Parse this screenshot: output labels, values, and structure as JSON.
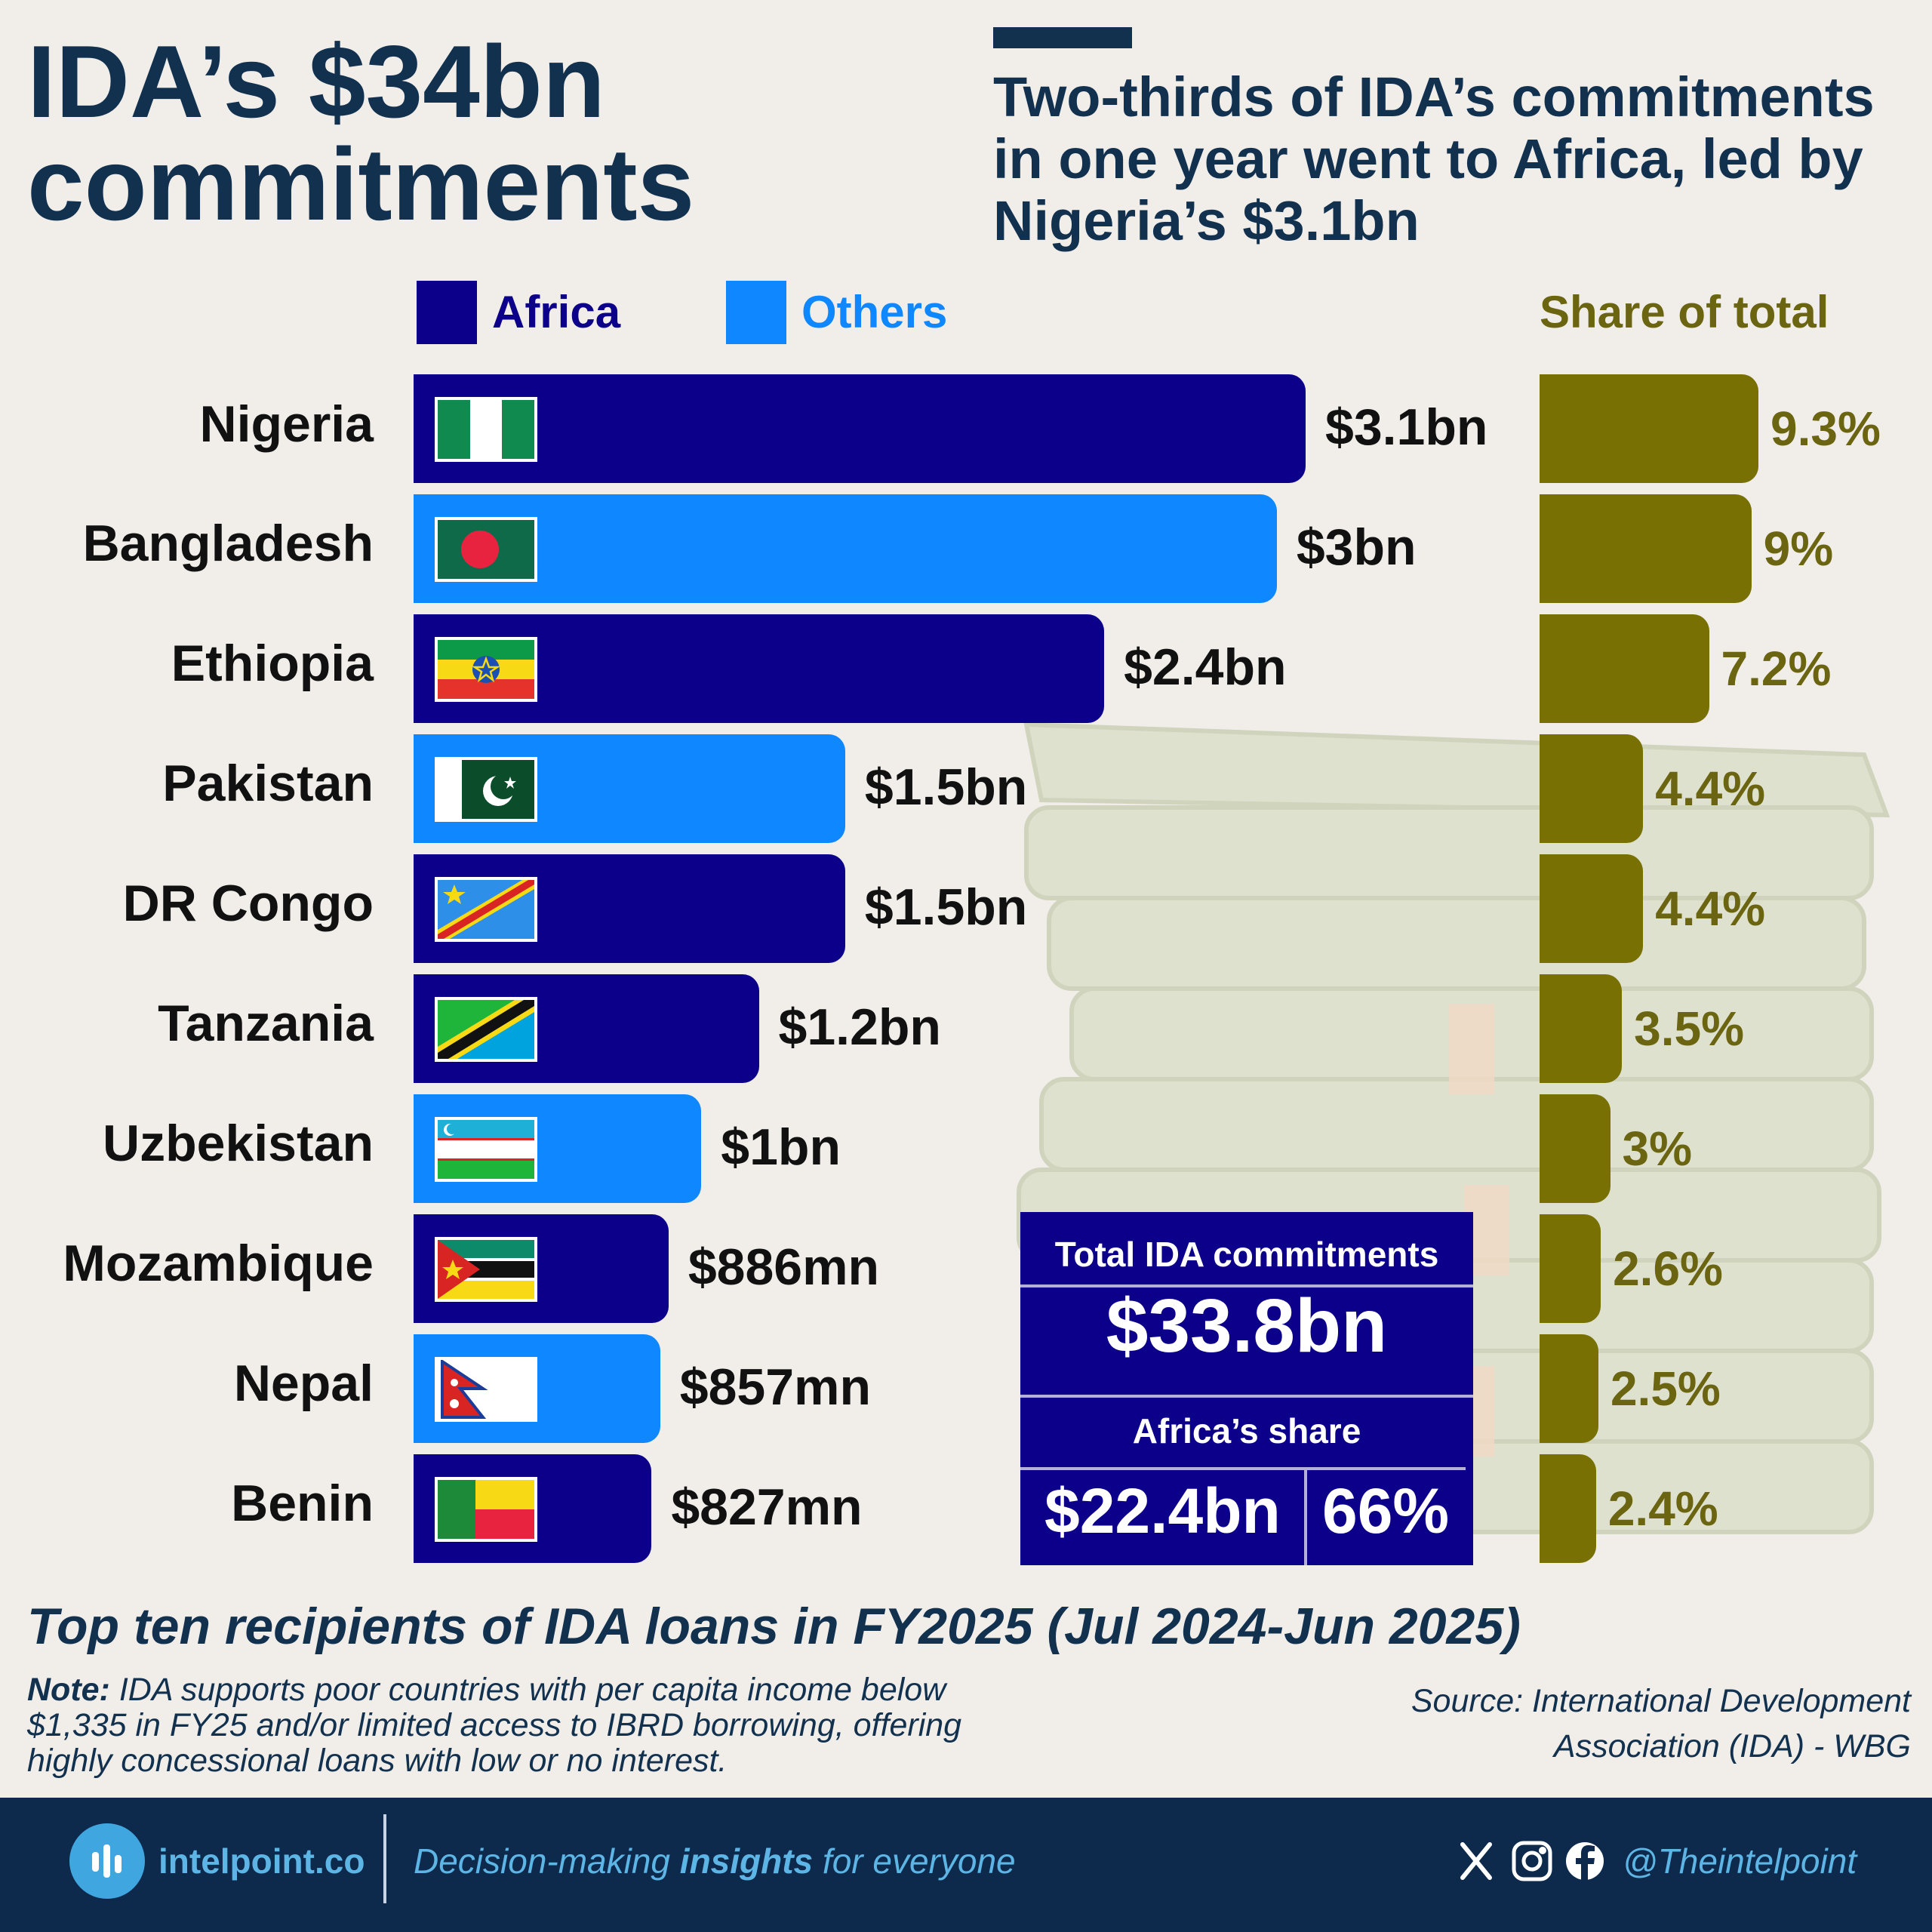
{
  "header": {
    "title_line1": "IDA’s $34bn",
    "title_line2": "commitments",
    "subtitle": "Two-thirds of IDA’s commitments in one year went to Africa, led by Nigeria’s $3.1bn"
  },
  "legend": {
    "africa_label": "Africa",
    "others_label": "Others",
    "share_label": "Share of total"
  },
  "colors": {
    "africa": "#0c008a",
    "others": "#0f87ff",
    "share": "#787003",
    "title": "#12314f"
  },
  "chart_data": {
    "type": "bar",
    "orientation": "horizontal",
    "title": "Top ten recipients of IDA loans in FY2025 (Jul 2024-Jun 2025)",
    "units": "USD",
    "categories": [
      "Nigeria",
      "Bangladesh",
      "Ethiopia",
      "Pakistan",
      "DR Congo",
      "Tanzania",
      "Uzbekistan",
      "Mozambique",
      "Nepal",
      "Benin"
    ],
    "series": [
      {
        "name": "Commitments",
        "values": [
          3100,
          3000,
          2400,
          1500,
          1500,
          1200,
          1000,
          886,
          857,
          827
        ],
        "value_unit": "USD million",
        "labels": [
          "$3.1bn",
          "$3bn",
          "$2.4bn",
          "$1.5bn",
          "$1.5bn",
          "$1.2bn",
          "$1bn",
          "$886mn",
          "$857mn",
          "$827mn"
        ],
        "region": [
          "Africa",
          "Others",
          "Africa",
          "Others",
          "Africa",
          "Africa",
          "Others",
          "Africa",
          "Others",
          "Africa"
        ]
      },
      {
        "name": "Share of total",
        "values": [
          9.3,
          9,
          7.2,
          4.4,
          4.4,
          3.5,
          3,
          2.6,
          2.5,
          2.4
        ],
        "value_unit": "percent",
        "labels": [
          "9.3%",
          "9%",
          "7.2%",
          "4.4%",
          "4.4%",
          "3.5%",
          "3%",
          "2.6%",
          "2.5%",
          "2.4%"
        ]
      }
    ],
    "legend": [
      "Africa",
      "Others"
    ]
  },
  "rows": [
    {
      "country": "Nigeria",
      "flag": "nigeria-flag-icon"
    },
    {
      "country": "Bangladesh",
      "flag": "bangladesh-flag-icon"
    },
    {
      "country": "Ethiopia",
      "flag": "ethiopia-flag-icon"
    },
    {
      "country": "Pakistan",
      "flag": "pakistan-flag-icon"
    },
    {
      "country": "DR Congo",
      "flag": "dr-congo-flag-icon"
    },
    {
      "country": "Tanzania",
      "flag": "tanzania-flag-icon"
    },
    {
      "country": "Uzbekistan",
      "flag": "uzbekistan-flag-icon"
    },
    {
      "country": "Mozambique",
      "flag": "mozambique-flag-icon"
    },
    {
      "country": "Nepal",
      "flag": "nepal-flag-icon"
    },
    {
      "country": "Benin",
      "flag": "benin-flag-icon"
    }
  ],
  "infobox": {
    "total_label": "Total IDA commitments",
    "total_value": "$33.8bn",
    "africa_label": "Africa’s share",
    "africa_value": "$22.4bn",
    "africa_pct": "66%"
  },
  "notes": {
    "chart_caption": "Top ten recipients of IDA loans in FY2025 (Jul 2024-Jun 2025)",
    "note_prefix": "Note:",
    "note_text": " IDA supports poor countries with per capita income below $1,335 in FY25 and/or limited access to IBRD borrowing, offering highly concessional loans with low or no interest.",
    "source_line1": "Source: International Development",
    "source_line2": "Association (IDA) - WBG"
  },
  "footer": {
    "brand": "intelpoint.co",
    "tagline_pre": "Decision-making ",
    "tagline_bold": "insights",
    "tagline_post": " for everyone",
    "handle": "@Theintelpoint",
    "icons": [
      "x-icon",
      "instagram-icon",
      "facebook-icon"
    ]
  }
}
